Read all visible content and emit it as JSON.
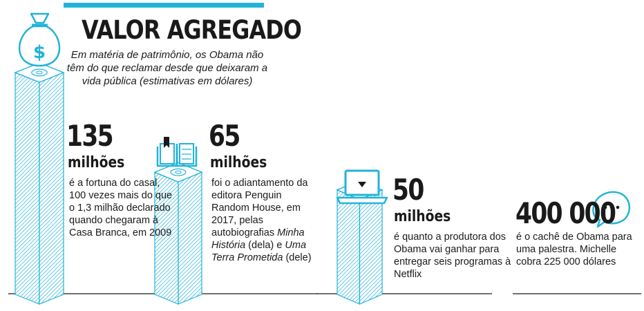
{
  "title": "VALOR AGREGADO",
  "subtitle": "Em matéria de patrimônio, os Obama não têm do que reclamar desde que deixaram a vida pública (estimativas em dólares)",
  "accent_color": "#22b3d9",
  "chart_data": {
    "type": "bar",
    "title": "VALOR AGREGADO",
    "subtitle": "Em matéria de patrimônio, os Obama não têm do que reclamar desde que deixaram a vida pública (estimativas em dólares)",
    "categories": [
      "Fortuna do casal",
      "Adiantamento Penguin Random House",
      "Netflix",
      "Cachê de palestra"
    ],
    "values": [
      135000000,
      65000000,
      50000000,
      400000
    ],
    "items": [
      {
        "number": "135",
        "unit": "milhões",
        "icon": "money-bag-icon",
        "text_parts": [
          {
            "t": "é a fortuna do casal, 100 vezes mais do que o 1,3 milhão declarado quando chegaram à Casa Branca, em 2009"
          }
        ]
      },
      {
        "number": "65",
        "unit": "milhões",
        "icon": "book-icon",
        "text_parts": [
          {
            "t": "foi o adiantamento da editora Penguin Random House, em 2017, pelas autobiografias "
          },
          {
            "t": "Minha História",
            "i": true
          },
          {
            "t": " (dela) e "
          },
          {
            "t": "Uma Terra Prometida",
            "i": true
          },
          {
            "t": " (dele)"
          }
        ]
      },
      {
        "number": "50",
        "unit": "milhões",
        "icon": "laptop-icon",
        "text_parts": [
          {
            "t": "é quanto a produtora dos Obama vai ganhar para entregar seis programas à Netflix"
          }
        ]
      },
      {
        "number": "400 000",
        "unit": "",
        "icon": "speech-bubble-icon",
        "text_parts": [
          {
            "t": "é o cachê de Obama para uma palestra. Michelle cobra 225 000 dólares"
          }
        ]
      }
    ]
  }
}
